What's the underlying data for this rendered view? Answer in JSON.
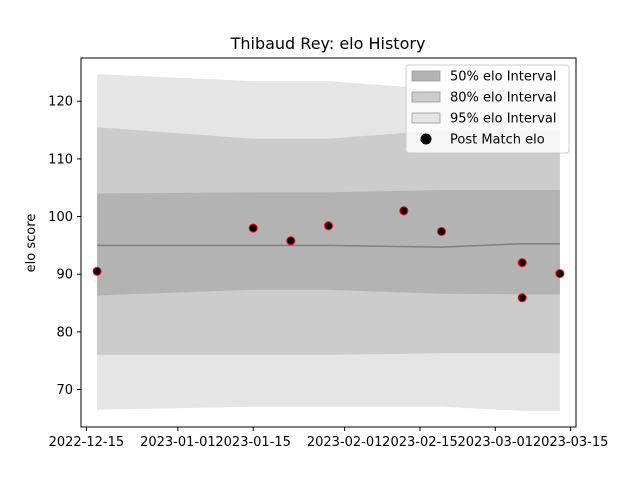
{
  "chart_data": {
    "type": "area",
    "title": "Thibaud Rey: elo History",
    "xlabel": "",
    "ylabel": "elo score",
    "x_ticks": [
      "2022-12-15",
      "2023-01-01",
      "2023-01-15",
      "2023-02-01",
      "2023-02-15",
      "2023-03-01",
      "2023-03-15"
    ],
    "y_ticks": [
      70,
      80,
      90,
      100,
      110,
      120
    ],
    "xlim": [
      "2022-12-14",
      "2023-03-16"
    ],
    "ylim": [
      63.5,
      127.5
    ],
    "grid": false,
    "legend": {
      "position": "top-right",
      "entries": [
        "50% elo Interval",
        "80% elo Interval",
        "95% elo Interval",
        "Post Match elo"
      ]
    },
    "colors": {
      "band50": "#b3b3b3",
      "band80": "#cccccc",
      "band95": "#e5e5e5",
      "mean_line": "#808080",
      "point_fill": "#000000",
      "point_edge": "#ff0000"
    },
    "dates": [
      "2022-12-17",
      "2023-01-15",
      "2023-01-29",
      "2023-02-19",
      "2023-03-06",
      "2023-03-13"
    ],
    "mean": [
      95.0,
      95.0,
      95.0,
      94.7,
      95.3,
      95.3
    ],
    "ci95_lower": [
      66.5,
      67.0,
      67.0,
      67.0,
      66.3,
      66.3
    ],
    "ci95_upper": [
      124.7,
      123.5,
      123.5,
      122.0,
      122.0,
      122.0
    ],
    "ci80_lower": [
      76.0,
      76.0,
      76.0,
      76.3,
      76.3,
      76.3
    ],
    "ci80_upper": [
      115.5,
      113.5,
      113.5,
      115.0,
      115.0,
      115.0
    ],
    "ci50_lower": [
      86.3,
      87.3,
      87.3,
      86.6,
      86.5,
      86.5
    ],
    "ci50_upper": [
      104.0,
      104.2,
      104.2,
      104.6,
      104.6,
      104.6
    ],
    "series": [
      {
        "name": "Post Match elo",
        "points": [
          {
            "x": "2022-12-17",
            "y": 90.5
          },
          {
            "x": "2023-01-15",
            "y": 98.0
          },
          {
            "x": "2023-01-22",
            "y": 95.8
          },
          {
            "x": "2023-01-29",
            "y": 98.4
          },
          {
            "x": "2023-02-12",
            "y": 101.0
          },
          {
            "x": "2023-02-19",
            "y": 97.4
          },
          {
            "x": "2023-03-06",
            "y": 92.0
          },
          {
            "x": "2023-03-06",
            "y": 85.9
          },
          {
            "x": "2023-03-13",
            "y": 90.1
          }
        ]
      }
    ]
  }
}
